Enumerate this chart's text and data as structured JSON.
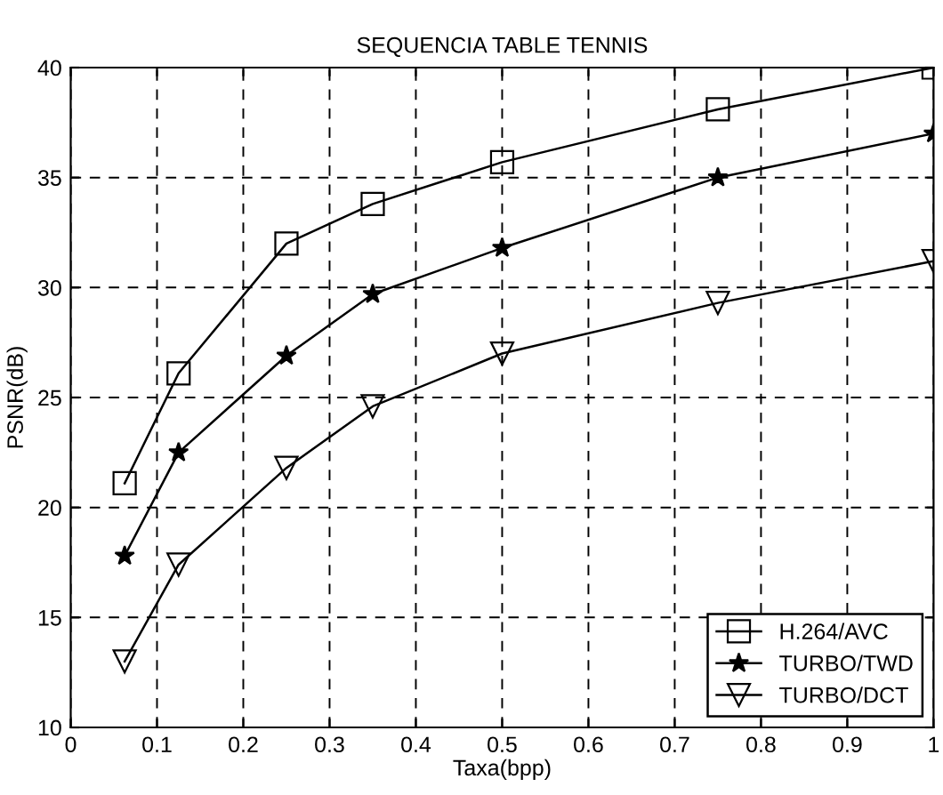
{
  "chart_data": {
    "type": "line",
    "title": "SEQUENCIA TABLE TENNIS",
    "xlabel": "Taxa(bpp)",
    "ylabel": "PSNR(dB)",
    "x": [
      0.0625,
      0.125,
      0.25,
      0.35,
      0.5,
      0.75,
      1.0
    ],
    "series": [
      {
        "name": "H.264/AVC",
        "color": "#000000",
        "marker": "square",
        "values": [
          21.1,
          26.1,
          32.0,
          33.8,
          35.7,
          38.1,
          40.0
        ]
      },
      {
        "name": "TURBO/TWD",
        "color": "#000000",
        "marker": "star",
        "values": [
          17.8,
          22.5,
          26.9,
          29.7,
          31.8,
          35.0,
          37.0
        ]
      },
      {
        "name": "TURBO/DCT",
        "color": "#000000",
        "marker": "triangle",
        "values": [
          13.0,
          17.4,
          21.8,
          24.6,
          27.0,
          29.3,
          31.2
        ]
      }
    ],
    "xlim": [
      0,
      1
    ],
    "xticks": [
      0,
      0.1,
      0.2,
      0.3,
      0.4,
      0.5,
      0.6,
      0.7,
      0.8,
      0.9,
      1
    ],
    "ylim": [
      10,
      40
    ],
    "yticks": [
      10,
      15,
      20,
      25,
      30,
      35,
      40
    ],
    "grid": true,
    "legend": "bottom right",
    "line_style": "solid"
  }
}
